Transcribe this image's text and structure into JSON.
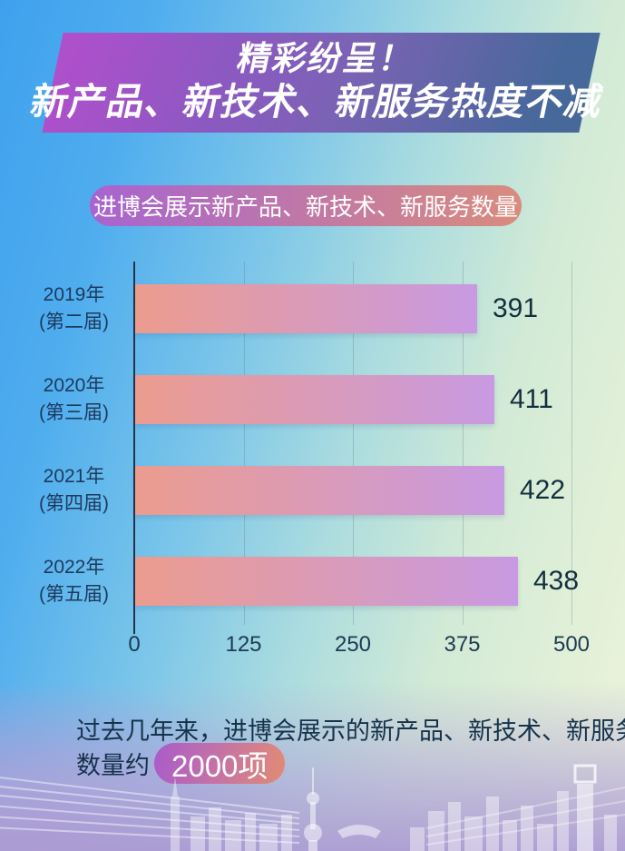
{
  "banner": {
    "line1": "精彩纷呈！",
    "line2": "新产品、新技术、新服务热度不减"
  },
  "subtitle": {
    "label": "进博会展示新产品、新技术、新服务数量"
  },
  "chart_data": {
    "type": "bar",
    "orientation": "horizontal",
    "title": "进博会展示新产品、新技术、新服务数量",
    "categories": [
      "2019年（第二届）",
      "2020年（第三届）",
      "2021年（第四届）",
      "2022年（第五届）"
    ],
    "rows": [
      {
        "year": "2019年",
        "session": "(第二届)",
        "value": 391
      },
      {
        "year": "2020年",
        "session": "(第三届)",
        "value": 411
      },
      {
        "year": "2021年",
        "session": "(第四届)",
        "value": 422
      },
      {
        "year": "2022年",
        "session": "(第五届)",
        "value": 438
      }
    ],
    "values": [
      391,
      411,
      422,
      438
    ],
    "x_ticks": [
      0,
      125,
      250,
      375,
      500
    ],
    "xlim": [
      0,
      500
    ],
    "grid": "vertical-gridlines-on",
    "legend": "none",
    "value_labels": "outside-right",
    "xlabel": "",
    "ylabel": ""
  },
  "footer": {
    "line1": "过去几年来，进博会展示的新产品、新技术、新服务",
    "line2_prefix": "数量约",
    "highlight": "2000项"
  },
  "colors": {
    "bg_top_left": "#3fa1ee",
    "bg_right": "#ecf4da",
    "bg_bottom_lavender": "#b2a2d6",
    "banner_gradient_left": "#b14fcb",
    "banner_gradient_right": "#47689b",
    "subtitle_gradient_left": "#a764d0",
    "subtitle_gradient_right": "#d98c7e",
    "bar_gradient_left": "#ec9c8e",
    "bar_gradient_right": "#c89ae2",
    "highlight_gradient_left": "#a95cc9",
    "highlight_gradient_right": "#e18b74",
    "text_navy": "#16334c",
    "banner_text": "#ffffff"
  }
}
